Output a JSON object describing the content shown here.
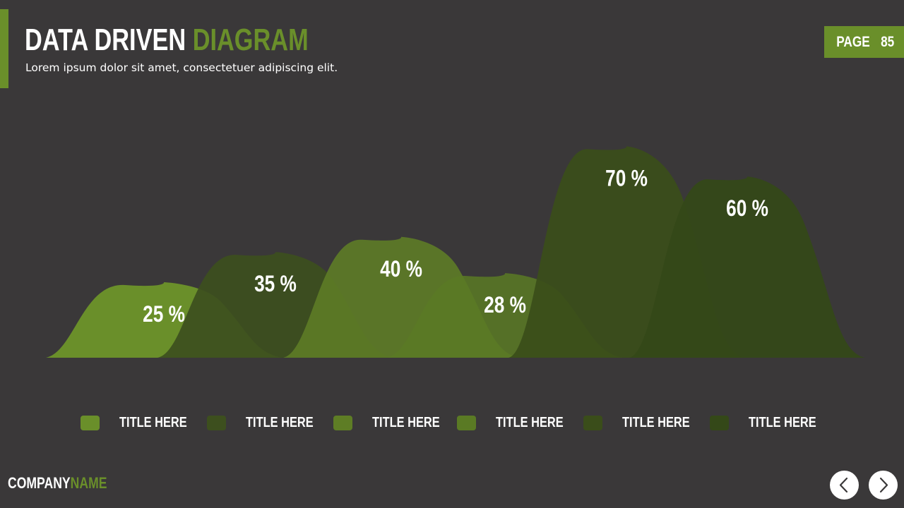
{
  "header": {
    "title_white": "DATA DRIVEN",
    "title_green": "DIAGRAM",
    "subtitle": "Lorem ipsum dolor sit amet, consectetuer adipiscing elit.",
    "page_label": "PAGE",
    "page_number": "85"
  },
  "colors": {
    "background": "#3a3839",
    "accent": "#6a8f2a",
    "series": [
      "#6a8f2a",
      "#3d4f1e",
      "#5e7d25",
      "#5a7a24",
      "#3a4d1a",
      "#344818"
    ]
  },
  "chart_data": {
    "type": "area",
    "title": "",
    "xlabel": "",
    "ylabel": "",
    "ylim": [
      0,
      100
    ],
    "series": [
      {
        "value": 25,
        "label": "25 %"
      },
      {
        "value": 35,
        "label": "35 %"
      },
      {
        "value": 40,
        "label": "40 %"
      },
      {
        "value": 28,
        "label": "28 %"
      },
      {
        "value": 70,
        "label": "70 %"
      },
      {
        "value": 60,
        "label": "60 %"
      }
    ]
  },
  "legend": {
    "items": [
      {
        "label": "TITLE HERE"
      },
      {
        "label": "TITLE HERE"
      },
      {
        "label": "TITLE HERE"
      },
      {
        "label": "TITLE HERE"
      },
      {
        "label": "TITLE HERE"
      },
      {
        "label": "TITLE HERE"
      }
    ]
  },
  "footer": {
    "company_white": "COMPANY",
    "company_green": "NAME",
    "prev_icon": "chevron-left-icon",
    "next_icon": "chevron-right-icon"
  }
}
